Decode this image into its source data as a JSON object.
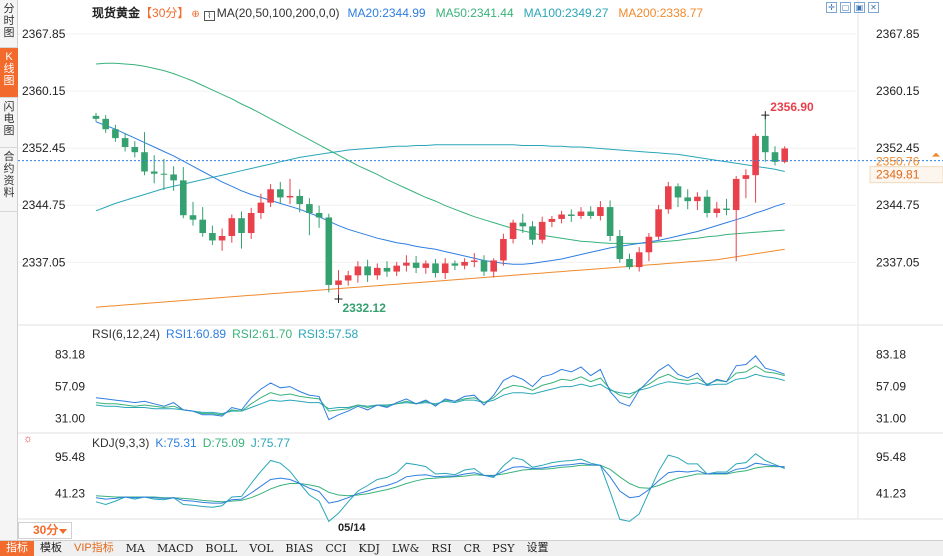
{
  "sidebar": {
    "tabs": [
      {
        "label": "分\n时\n图",
        "active": false
      },
      {
        "label": "K\n线\n图",
        "active": true
      },
      {
        "label": "闪\n电\n图",
        "active": false
      },
      {
        "label": "合\n约\n资\n料",
        "active": false
      }
    ]
  },
  "header": {
    "instrument": "现货黄金",
    "period": "【30分】",
    "ma_label": "MA(20,50,100,200,0,0)",
    "ma20": "MA20:2344.99",
    "ma50": "MA50:2341.44",
    "ma100": "MA100:2349.27",
    "ma200": "MA200:2338.77"
  },
  "rsi_header": {
    "label": "RSI(6,12,24)",
    "rsi1": "RSI1:60.89",
    "rsi2": "RSI2:61.70",
    "rsi3": "RSI3:57.58"
  },
  "kdj_header": {
    "label": "KDJ(9,3,3)",
    "k": "K:75.31",
    "d": "D:75.09",
    "j": "J:75.77"
  },
  "window_controls": [
    "✛",
    "▢",
    "▣",
    "✕"
  ],
  "price_axis": {
    "ticks": [
      "2367.85",
      "2360.15",
      "2352.45",
      "2344.75",
      "2337.05"
    ],
    "current_price_hidden": "2350.76",
    "current_price": "2349.81"
  },
  "rsi_axis": {
    "ticks": [
      "83.18",
      "57.09",
      "31.00"
    ]
  },
  "kdj_axis": {
    "ticks": [
      "95.48",
      "41.23"
    ]
  },
  "annotations": {
    "high": "2356.90",
    "low": "2332.12"
  },
  "bottom": {
    "period": "30分",
    "date": "05/14",
    "toolbar": [
      "指标",
      "模板",
      "VIP指标",
      "MA",
      "MACD",
      "BOLL",
      "VOL",
      "BIAS",
      "CCI",
      "KDJ",
      "LW&",
      "RSI",
      "CR",
      "PSY",
      "设置"
    ]
  },
  "colors": {
    "up": "#e8414b",
    "down": "#35a070",
    "ma20": "#2f7ee0",
    "ma50": "#39b27a",
    "ma100": "#2aa6b8",
    "ma200": "#f08a2c",
    "accent": "#f26b2d"
  },
  "chart_data": {
    "type": "candlestick",
    "timeframe": "30分",
    "ylim": [
      2329.0,
      2370.0
    ],
    "candles": [
      [
        2356.8,
        2357.2,
        2356.0,
        2356.4
      ],
      [
        2356.4,
        2356.9,
        2354.5,
        2355.0
      ],
      [
        2355.0,
        2355.6,
        2353.3,
        2353.8
      ],
      [
        2353.8,
        2354.5,
        2352.0,
        2352.6
      ],
      [
        2352.6,
        2353.4,
        2351.2,
        2351.9
      ],
      [
        2351.9,
        2354.6,
        2348.8,
        2349.3
      ],
      [
        2349.3,
        2351.5,
        2347.7,
        2349.0
      ],
      [
        2349.0,
        2351.0,
        2346.8,
        2348.9
      ],
      [
        2348.9,
        2350.0,
        2346.7,
        2348.1
      ],
      [
        2348.1,
        2349.9,
        2343.0,
        2343.4
      ],
      [
        2343.4,
        2345.2,
        2342.0,
        2342.8
      ],
      [
        2342.8,
        2344.5,
        2340.5,
        2341.0
      ],
      [
        2341.0,
        2342.0,
        2339.4,
        2340.0
      ],
      [
        2340.0,
        2341.6,
        2338.6,
        2340.6
      ],
      [
        2340.6,
        2343.5,
        2339.7,
        2343.0
      ],
      [
        2343.0,
        2343.9,
        2338.9,
        2341.0
      ],
      [
        2341.0,
        2344.4,
        2340.2,
        2343.7
      ],
      [
        2343.7,
        2346.3,
        2342.9,
        2345.1
      ],
      [
        2345.1,
        2347.6,
        2344.5,
        2346.9
      ],
      [
        2346.9,
        2347.9,
        2344.9,
        2345.8
      ],
      [
        2345.8,
        2348.3,
        2344.9,
        2346.0
      ],
      [
        2346.0,
        2346.9,
        2343.8,
        2344.9
      ],
      [
        2344.9,
        2345.7,
        2340.7,
        2343.7
      ],
      [
        2343.7,
        2344.7,
        2341.7,
        2343.1
      ],
      [
        2343.1,
        2343.6,
        2333.0,
        2334.0
      ],
      [
        2334.0,
        2336.0,
        2332.1,
        2334.6
      ],
      [
        2334.6,
        2335.9,
        2333.9,
        2335.3
      ],
      [
        2335.3,
        2337.2,
        2334.3,
        2336.5
      ],
      [
        2336.5,
        2337.4,
        2334.4,
        2335.3
      ],
      [
        2335.3,
        2336.9,
        2334.7,
        2336.3
      ],
      [
        2336.3,
        2337.2,
        2335.1,
        2335.8
      ],
      [
        2335.8,
        2337.1,
        2335.2,
        2336.6
      ],
      [
        2336.6,
        2338.0,
        2335.8,
        2337.0
      ],
      [
        2337.0,
        2337.9,
        2335.6,
        2336.3
      ],
      [
        2336.3,
        2337.3,
        2335.5,
        2336.9
      ],
      [
        2336.9,
        2337.5,
        2335.0,
        2335.6
      ],
      [
        2335.6,
        2337.6,
        2334.8,
        2336.9
      ],
      [
        2336.9,
        2337.3,
        2336.0,
        2336.6
      ],
      [
        2336.6,
        2337.6,
        2336.1,
        2337.1
      ],
      [
        2337.1,
        2338.3,
        2336.4,
        2337.3
      ],
      [
        2337.3,
        2338.0,
        2335.2,
        2335.8
      ],
      [
        2335.8,
        2337.6,
        2335.0,
        2337.3
      ],
      [
        2337.3,
        2340.9,
        2336.6,
        2340.2
      ],
      [
        2340.2,
        2342.8,
        2339.6,
        2342.4
      ],
      [
        2342.4,
        2343.6,
        2341.0,
        2341.9
      ],
      [
        2341.9,
        2342.6,
        2339.4,
        2340.1
      ],
      [
        2340.1,
        2343.2,
        2339.6,
        2342.5
      ],
      [
        2342.5,
        2343.3,
        2341.8,
        2342.9
      ],
      [
        2342.9,
        2344.0,
        2342.3,
        2343.5
      ],
      [
        2343.5,
        2344.2,
        2342.5,
        2343.3
      ],
      [
        2343.3,
        2344.5,
        2342.9,
        2343.9
      ],
      [
        2343.9,
        2344.6,
        2342.9,
        2343.3
      ],
      [
        2343.3,
        2345.3,
        2342.7,
        2344.5
      ],
      [
        2344.5,
        2345.4,
        2339.9,
        2340.6
      ],
      [
        2340.6,
        2341.4,
        2337.0,
        2337.5
      ],
      [
        2337.5,
        2338.2,
        2336.1,
        2336.4
      ],
      [
        2336.4,
        2339.1,
        2335.8,
        2338.4
      ],
      [
        2338.4,
        2341.0,
        2337.2,
        2340.5
      ],
      [
        2340.5,
        2344.8,
        2340.1,
        2344.2
      ],
      [
        2344.2,
        2347.9,
        2343.6,
        2347.3
      ],
      [
        2347.3,
        2347.7,
        2344.5,
        2345.8
      ],
      [
        2345.8,
        2346.9,
        2344.2,
        2345.3
      ],
      [
        2345.3,
        2346.5,
        2344.1,
        2345.9
      ],
      [
        2345.9,
        2346.8,
        2343.1,
        2343.7
      ],
      [
        2343.7,
        2345.2,
        2343.1,
        2344.3
      ],
      [
        2344.3,
        2345.6,
        2343.4,
        2344.1
      ],
      [
        2344.1,
        2348.7,
        2337.2,
        2348.3
      ],
      [
        2348.3,
        2349.6,
        2345.7,
        2348.8
      ],
      [
        2348.8,
        2354.4,
        2345.1,
        2354.1
      ],
      [
        2354.1,
        2356.9,
        2350.6,
        2351.9
      ],
      [
        2351.9,
        2352.7,
        2350.1,
        2350.6
      ],
      [
        2350.6,
        2352.7,
        2350.4,
        2352.4
      ]
    ],
    "ma20": [
      2356.0,
      2355.5,
      2355.0,
      2354.4,
      2353.8,
      2353.2,
      2352.6,
      2352.0,
      2351.4,
      2350.7,
      2350.0,
      2349.3,
      2348.6,
      2347.9,
      2347.3,
      2346.7,
      2346.2,
      2345.8,
      2345.4,
      2345.0,
      2344.6,
      2344.2,
      2343.7,
      2343.2,
      2342.6,
      2342.0,
      2341.5,
      2341.1,
      2340.7,
      2340.3,
      2340.0,
      2339.7,
      2339.5,
      2339.2,
      2339.0,
      2338.8,
      2338.5,
      2338.2,
      2337.9,
      2337.6,
      2337.3,
      2337.1,
      2336.9,
      2336.8,
      2336.8,
      2336.9,
      2337.1,
      2337.3,
      2337.5,
      2337.8,
      2338.1,
      2338.4,
      2338.7,
      2339.0,
      2339.2,
      2339.4,
      2339.6,
      2339.8,
      2340.0,
      2340.3,
      2340.6,
      2340.9,
      2341.2,
      2341.6,
      2342.0,
      2342.4,
      2342.8,
      2343.2,
      2343.7,
      2344.1,
      2344.6,
      2345.0
    ],
    "ma50": [
      2363.8,
      2363.9,
      2363.9,
      2363.8,
      2363.7,
      2363.5,
      2363.2,
      2362.9,
      2362.5,
      2362.0,
      2361.5,
      2360.9,
      2360.3,
      2359.7,
      2359.1,
      2358.4,
      2357.8,
      2357.1,
      2356.4,
      2355.7,
      2355.0,
      2354.3,
      2353.6,
      2352.9,
      2352.2,
      2351.5,
      2350.8,
      2350.1,
      2349.5,
      2348.9,
      2348.2,
      2347.6,
      2347.0,
      2346.4,
      2345.8,
      2345.3,
      2344.7,
      2344.2,
      2343.7,
      2343.2,
      2342.8,
      2342.4,
      2342.0,
      2341.6,
      2341.3,
      2341.0,
      2340.7,
      2340.5,
      2340.3,
      2340.1,
      2339.9,
      2339.8,
      2339.7,
      2339.6,
      2339.6,
      2339.6,
      2339.6,
      2339.7,
      2339.8,
      2339.9,
      2340.0,
      2340.2,
      2340.3,
      2340.5,
      2340.6,
      2340.8,
      2340.9,
      2341.0,
      2341.1,
      2341.2,
      2341.3,
      2341.4
    ],
    "ma100": [
      2344.0,
      2344.5,
      2345.0,
      2345.4,
      2345.8,
      2346.2,
      2346.6,
      2347.0,
      2347.3,
      2347.6,
      2347.9,
      2348.2,
      2348.5,
      2348.8,
      2349.1,
      2349.4,
      2349.7,
      2350.0,
      2350.3,
      2350.6,
      2350.9,
      2351.2,
      2351.4,
      2351.6,
      2351.8,
      2352.0,
      2352.2,
      2352.3,
      2352.4,
      2352.5,
      2352.6,
      2352.7,
      2352.7,
      2352.8,
      2352.8,
      2352.9,
      2352.9,
      2352.9,
      2352.9,
      2352.9,
      2352.9,
      2352.9,
      2352.9,
      2352.9,
      2352.8,
      2352.8,
      2352.8,
      2352.7,
      2352.7,
      2352.6,
      2352.6,
      2352.5,
      2352.4,
      2352.3,
      2352.2,
      2352.1,
      2352.0,
      2351.9,
      2351.8,
      2351.7,
      2351.6,
      2351.4,
      2351.2,
      2351.0,
      2350.8,
      2350.6,
      2350.4,
      2350.2,
      2350.0,
      2349.8,
      2349.6,
      2349.3
    ],
    "ma200": [
      2331.0,
      2331.1,
      2331.2,
      2331.3,
      2331.4,
      2331.5,
      2331.6,
      2331.7,
      2331.8,
      2331.9,
      2332.0,
      2332.1,
      2332.2,
      2332.3,
      2332.4,
      2332.5,
      2332.6,
      2332.7,
      2332.8,
      2332.9,
      2333.0,
      2333.1,
      2333.2,
      2333.3,
      2333.4,
      2333.5,
      2333.6,
      2333.7,
      2333.8,
      2333.9,
      2334.0,
      2334.1,
      2334.2,
      2334.3,
      2334.4,
      2334.5,
      2334.6,
      2334.7,
      2334.8,
      2334.9,
      2335.0,
      2335.1,
      2335.2,
      2335.3,
      2335.4,
      2335.5,
      2335.6,
      2335.7,
      2335.8,
      2335.9,
      2336.0,
      2336.1,
      2336.2,
      2336.3,
      2336.4,
      2336.5,
      2336.6,
      2336.7,
      2336.8,
      2336.9,
      2337.0,
      2337.1,
      2337.2,
      2337.3,
      2337.4,
      2337.6,
      2337.8,
      2338.0,
      2338.2,
      2338.4,
      2338.6,
      2338.8
    ],
    "rsi_ylim": [
      20,
      95
    ],
    "rsi1": [
      48,
      47,
      46,
      45,
      44,
      45,
      43,
      41,
      44,
      38,
      37,
      34,
      34,
      33,
      40,
      38,
      48,
      55,
      60,
      56,
      57,
      53,
      50,
      49,
      30,
      34,
      37,
      41,
      38,
      42,
      40,
      44,
      47,
      43,
      46,
      41,
      47,
      45,
      49,
      50,
      42,
      50,
      62,
      66,
      63,
      57,
      65,
      67,
      71,
      69,
      73,
      66,
      71,
      53,
      44,
      41,
      54,
      62,
      70,
      75,
      67,
      64,
      68,
      58,
      63,
      61,
      74,
      75,
      82,
      72,
      70,
      67
    ],
    "rsi2": [
      44,
      43,
      43,
      42,
      41,
      42,
      41,
      40,
      41,
      38,
      37,
      35,
      35,
      34,
      38,
      37,
      43,
      48,
      52,
      50,
      51,
      49,
      48,
      47,
      37,
      38,
      39,
      42,
      40,
      42,
      41,
      43,
      45,
      43,
      45,
      42,
      46,
      45,
      47,
      48,
      44,
      48,
      55,
      58,
      57,
      54,
      58,
      60,
      63,
      62,
      65,
      61,
      64,
      55,
      50,
      48,
      55,
      59,
      64,
      67,
      63,
      62,
      64,
      59,
      62,
      61,
      68,
      69,
      74,
      69,
      68,
      66
    ],
    "rsi3": [
      42,
      41,
      41,
      40,
      40,
      40,
      39,
      39,
      39,
      38,
      37,
      36,
      36,
      35,
      37,
      37,
      40,
      43,
      46,
      45,
      46,
      45,
      44,
      44,
      39,
      40,
      40,
      42,
      41,
      42,
      42,
      43,
      44,
      43,
      44,
      43,
      45,
      44,
      46,
      46,
      44,
      46,
      50,
      52,
      52,
      51,
      53,
      55,
      57,
      57,
      59,
      57,
      59,
      54,
      52,
      51,
      54,
      56,
      59,
      61,
      60,
      59,
      60,
      58,
      59,
      59,
      63,
      64,
      67,
      65,
      64,
      62
    ],
    "kdj_ylim": [
      5,
      110
    ],
    "k": [
      35,
      33,
      34,
      36,
      35,
      36,
      35,
      34,
      35,
      31,
      30,
      28,
      27,
      27,
      32,
      33,
      42,
      52,
      62,
      64,
      62,
      56,
      49,
      44,
      27,
      30,
      35,
      41,
      45,
      50,
      53,
      58,
      66,
      68,
      69,
      66,
      67,
      67,
      70,
      72,
      68,
      67,
      74,
      80,
      81,
      78,
      79,
      81,
      83,
      84,
      86,
      84,
      83,
      66,
      45,
      35,
      37,
      47,
      60,
      72,
      74,
      73,
      75,
      70,
      71,
      71,
      77,
      79,
      86,
      84,
      82,
      80
    ],
    "d": [
      38,
      37,
      36,
      36,
      36,
      36,
      36,
      35,
      35,
      34,
      33,
      31,
      30,
      29,
      30,
      31,
      35,
      41,
      48,
      53,
      56,
      56,
      54,
      51,
      43,
      39,
      38,
      39,
      41,
      44,
      47,
      51,
      56,
      60,
      63,
      64,
      65,
      66,
      67,
      69,
      68,
      68,
      70,
      73,
      76,
      77,
      77,
      78,
      80,
      81,
      83,
      83,
      83,
      77,
      66,
      56,
      50,
      49,
      53,
      59,
      64,
      67,
      70,
      70,
      70,
      70,
      73,
      75,
      79,
      81,
      81,
      81
    ],
    "j": [
      29,
      25,
      30,
      36,
      33,
      36,
      33,
      32,
      35,
      25,
      24,
      22,
      21,
      23,
      36,
      37,
      56,
      74,
      90,
      86,
      74,
      56,
      39,
      30,
      0,
      12,
      29,
      45,
      53,
      62,
      65,
      72,
      86,
      84,
      81,
      70,
      71,
      69,
      76,
      78,
      68,
      65,
      82,
      94,
      91,
      80,
      83,
      87,
      89,
      90,
      92,
      86,
      83,
      44,
      3,
      0,
      11,
      43,
      74,
      98,
      94,
      85,
      85,
      70,
      73,
      73,
      85,
      87,
      100,
      90,
      84,
      78
    ]
  }
}
